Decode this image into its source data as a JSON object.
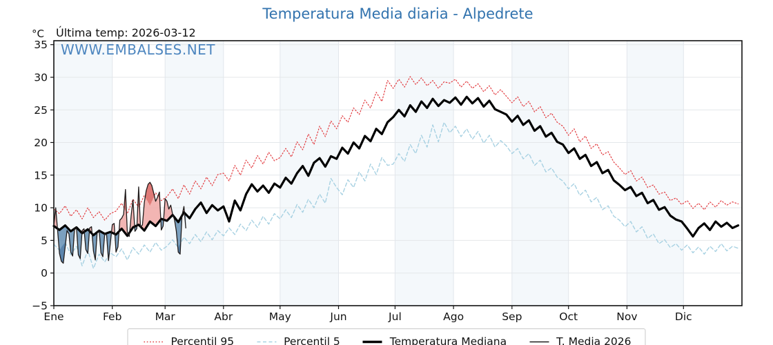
{
  "page": {
    "title": "Temperatura Media diaria - Alpedrete",
    "unit_label": "°C",
    "annotation": "Última temp: 2026-03-12",
    "watermark": "WWW.EMBALSES.NET"
  },
  "colors": {
    "title_blue": "#3273ae",
    "watermark_blue": "#3b7ab9",
    "band": "#f4f8fb",
    "h_gridline": "#e4e7ea",
    "v_gridline": "#e2e6ec",
    "axis_frame": "#111111",
    "fill_above": "#f0a8a6",
    "fill_below": "#5d89b0",
    "fill_above_p95": "#da6c68",
    "fill_below_p5": "#41709f"
  },
  "chart_data": {
    "type": "line",
    "title": "Temperatura Media diaria - Alpedrete",
    "xlabel": "",
    "ylabel": "°C",
    "annotation": "Última temp: 2026-03-12",
    "watermark": "WWW.EMBALSES.NET",
    "x_tick_labels": [
      "Ene",
      "Feb",
      "Mar",
      "Abr",
      "May",
      "Jun",
      "Jul",
      "Ago",
      "Sep",
      "Oct",
      "Nov",
      "Dic"
    ],
    "month_starts": [
      0,
      31,
      59,
      90,
      120,
      151,
      181,
      212,
      243,
      273,
      304,
      334
    ],
    "days_in_year": 365,
    "ylim": [
      -5,
      35.6
    ],
    "yticks": [
      -5,
      0,
      5,
      10,
      15,
      20,
      25,
      30,
      35
    ],
    "grid": true,
    "alternating_month_bands": true,
    "legend_position": "bottom-center",
    "legend": [
      "Percentil 95",
      "Percentil 5",
      "Temperatura Mediana",
      "T. Media 2026"
    ],
    "series": [
      {
        "name": "Percentil 95",
        "color": "#e23c40",
        "style": "dotted",
        "width": 1.2,
        "day_step": 3,
        "values": [
          9.8,
          9.1,
          10.3,
          8.7,
          9.7,
          8.3,
          10.0,
          8.5,
          9.4,
          8.1,
          9.1,
          9.5,
          10.7,
          9.1,
          11.3,
          10.1,
          11.9,
          10.4,
          12.3,
          11.1,
          11.7,
          12.9,
          11.4,
          13.5,
          12.1,
          14.1,
          12.9,
          14.7,
          13.4,
          15.1,
          15.3,
          14.1,
          16.5,
          15.0,
          17.3,
          16.1,
          18.0,
          16.7,
          18.5,
          17.2,
          17.7,
          19.1,
          17.8,
          20.1,
          18.9,
          21.3,
          19.7,
          22.5,
          20.9,
          23.3,
          22.1,
          24.1,
          23.1,
          25.3,
          24.3,
          26.5,
          25.3,
          27.7,
          26.3,
          29.5,
          28.3,
          29.7,
          28.5,
          30.1,
          28.9,
          29.9,
          28.7,
          29.5,
          28.3,
          29.3,
          29.1,
          29.7,
          28.5,
          29.4,
          28.3,
          29.0,
          27.8,
          28.7,
          27.3,
          28.1,
          27.1,
          26.1,
          27.0,
          25.5,
          26.3,
          24.7,
          25.5,
          23.8,
          24.5,
          23.1,
          22.5,
          21.1,
          22.1,
          20.1,
          21.0,
          19.1,
          19.8,
          18.1,
          18.6,
          17.0,
          16.1,
          15.1,
          15.7,
          14.1,
          14.7,
          13.1,
          13.5,
          12.1,
          12.4,
          11.1,
          11.5,
          10.5,
          11.1,
          9.9,
          10.7,
          9.7,
          10.9,
          10.1,
          11.1,
          10.4,
          10.9,
          10.6
        ]
      },
      {
        "name": "Percentil 5",
        "color": "#a7d1e2",
        "style": "dashed",
        "width": 1.4,
        "day_step": 3,
        "values": [
          4.4,
          3.5,
          4.7,
          2.8,
          4.1,
          1.1,
          3.5,
          0.7,
          2.9,
          1.7,
          3.1,
          2.5,
          3.7,
          2.0,
          3.9,
          2.9,
          4.3,
          3.2,
          4.7,
          3.5,
          4.1,
          5.1,
          3.9,
          5.5,
          4.5,
          5.9,
          4.8,
          6.3,
          5.1,
          6.5,
          5.7,
          6.9,
          5.9,
          7.5,
          6.5,
          8.1,
          7.0,
          8.7,
          7.5,
          9.1,
          8.3,
          9.7,
          8.5,
          10.5,
          9.3,
          11.3,
          10.0,
          12.1,
          10.7,
          14.5,
          13.1,
          12.0,
          14.3,
          13.1,
          15.5,
          14.1,
          16.7,
          15.1,
          17.7,
          16.5,
          16.7,
          18.3,
          17.1,
          19.7,
          18.3,
          21.1,
          19.3,
          22.7,
          20.1,
          23.1,
          21.5,
          22.5,
          20.9,
          22.1,
          20.5,
          21.7,
          19.9,
          21.1,
          19.3,
          20.3,
          19.5,
          18.3,
          19.1,
          17.5,
          18.3,
          16.5,
          17.3,
          15.5,
          16.1,
          14.7,
          14.1,
          12.9,
          13.7,
          11.9,
          12.7,
          10.9,
          11.6,
          9.7,
          10.3,
          8.7,
          8.1,
          7.1,
          7.9,
          6.3,
          7.1,
          5.3,
          6.0,
          4.5,
          5.1,
          3.9,
          4.5,
          3.5,
          4.3,
          3.1,
          4.0,
          2.9,
          4.1,
          3.3,
          4.5,
          3.4,
          4.1,
          3.8
        ]
      },
      {
        "name": "Temperatura Mediana",
        "color": "#000000",
        "style": "solid",
        "width": 3.2,
        "day_step": 3,
        "values": [
          7.2,
          6.6,
          7.3,
          6.4,
          7.0,
          6.1,
          6.7,
          5.8,
          6.5,
          6.0,
          6.3,
          5.9,
          6.8,
          5.7,
          7.0,
          7.4,
          6.5,
          7.9,
          7.2,
          8.3,
          8.0,
          8.9,
          7.8,
          9.3,
          8.4,
          9.8,
          10.8,
          9.2,
          10.4,
          9.6,
          10.2,
          7.9,
          11.1,
          9.6,
          12.1,
          13.6,
          12.5,
          13.4,
          12.3,
          13.7,
          13.1,
          14.6,
          13.7,
          15.3,
          16.4,
          14.9,
          16.9,
          17.6,
          16.3,
          17.9,
          17.5,
          19.2,
          18.3,
          20.0,
          19.1,
          21.0,
          20.2,
          22.1,
          21.3,
          23.1,
          23.9,
          25.0,
          24.0,
          25.7,
          24.7,
          26.3,
          25.3,
          26.7,
          25.6,
          26.5,
          26.1,
          26.9,
          25.8,
          27.0,
          26.0,
          26.8,
          25.5,
          26.4,
          25.1,
          24.7,
          24.3,
          23.2,
          24.1,
          22.7,
          23.4,
          21.8,
          22.5,
          20.9,
          21.5,
          20.1,
          19.7,
          18.4,
          19.1,
          17.5,
          18.1,
          16.4,
          17.0,
          15.3,
          15.8,
          14.2,
          13.5,
          12.7,
          13.2,
          11.8,
          12.3,
          10.7,
          11.2,
          9.7,
          10.1,
          8.8,
          8.2,
          7.9,
          6.8,
          5.6,
          6.9,
          7.6,
          6.6,
          7.9,
          7.1,
          7.7,
          6.9,
          7.3
        ]
      },
      {
        "name": "T. Media 2026",
        "color": "#1f1b1b",
        "style": "solid",
        "width": 1.3,
        "day_step": 1,
        "values": [
          7.3,
          10.0,
          6.5,
          3.0,
          1.8,
          1.5,
          4.0,
          6.5,
          6.0,
          3.2,
          2.6,
          6.8,
          7.0,
          2.8,
          2.2,
          6.5,
          6.8,
          3.6,
          3.0,
          6.9,
          7.1,
          3.4,
          2.0,
          6.3,
          6.6,
          3.1,
          2.5,
          6.1,
          5.8,
          1.9,
          4.6,
          7.4,
          7.6,
          3.2,
          4.0,
          8.1,
          8.4,
          9.0,
          12.8,
          6.2,
          5.6,
          8.8,
          11.2,
          6.4,
          6.8,
          13.2,
          7.0,
          7.4,
          10.8,
          12.6,
          13.6,
          13.9,
          13.4,
          12.2,
          11.0,
          11.6,
          12.4,
          6.6,
          7.2,
          11.4,
          11.0,
          9.8,
          10.4,
          9.0,
          8.2,
          6.4,
          3.2,
          2.9,
          8.8,
          10.2,
          6.9
        ]
      }
    ],
    "fills": [
      {
        "upper": 3,
        "lower": 2,
        "mode": "above",
        "color": "#f0a8a6",
        "opacity": 0.85,
        "meaning": "T. Media 2026 above mediana"
      },
      {
        "upper": 3,
        "lower": 2,
        "mode": "below",
        "color": "#5d89b0",
        "opacity": 0.8,
        "meaning": "T. Media 2026 below mediana"
      },
      {
        "upper": 3,
        "lower": 0,
        "mode": "above",
        "color": "#da6c68",
        "opacity": 0.8,
        "meaning": "T. Media 2026 above percentil 95"
      },
      {
        "upper": 1,
        "lower": 3,
        "mode": "above",
        "color": "#41709f",
        "opacity": 0.55,
        "meaning": "T. Media 2026 below percentil 5"
      }
    ]
  }
}
